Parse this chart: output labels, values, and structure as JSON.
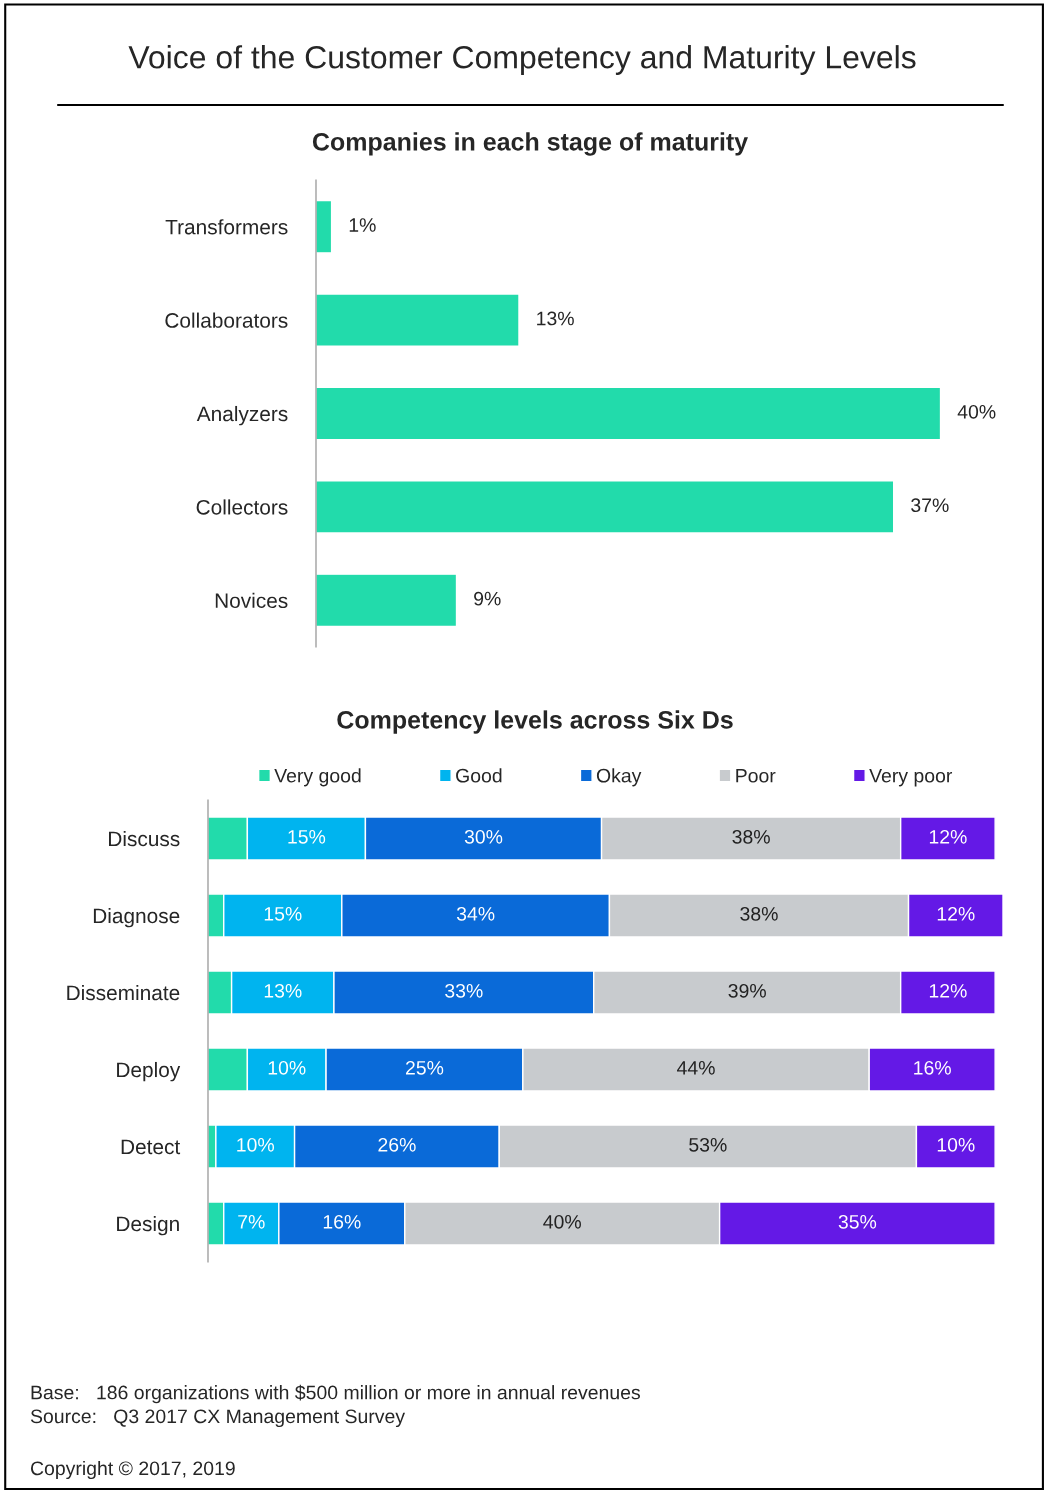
{
  "chart_data": [
    {
      "type": "bar",
      "orientation": "horizontal",
      "title": "Voice of the Customer Competency and Maturity Levels",
      "subtitle": "Companies in each stage of maturity",
      "categories": [
        "Transformers",
        "Collaborators",
        "Analyzers",
        "Collectors",
        "Novices"
      ],
      "values": [
        1,
        13,
        40,
        37,
        9
      ],
      "value_labels": [
        "1%",
        "13%",
        "40%",
        "37%",
        "9%"
      ],
      "color": "#22dbab",
      "tick_labels": "y",
      "grid": false
    },
    {
      "type": "bar",
      "orientation": "horizontal",
      "stacked": true,
      "title": "Competency levels across Six Ds",
      "legend": "top",
      "tick_labels": "y",
      "grid": false,
      "categories": [
        "Discuss",
        "Diagnose",
        "Disseminate",
        "Deploy",
        "Detect",
        "Design"
      ],
      "series": [
        {
          "name": "Very good",
          "color": "#22dbab",
          "values": [
            5,
            2,
            3,
            5,
            1,
            2
          ],
          "value_labels": [
            null,
            null,
            null,
            null,
            null,
            null
          ]
        },
        {
          "name": "Good",
          "color": "#00b4ef",
          "values": [
            15,
            15,
            13,
            10,
            10,
            7
          ],
          "value_labels": [
            "15%",
            "15%",
            "13%",
            "10%",
            "10%",
            "7%"
          ]
        },
        {
          "name": "Okay",
          "color": "#0a6ad8",
          "values": [
            30,
            34,
            33,
            25,
            26,
            16
          ],
          "value_labels": [
            "30%",
            "34%",
            "33%",
            "25%",
            "26%",
            "16%"
          ]
        },
        {
          "name": "Poor",
          "color": "#c8cbce",
          "values": [
            38,
            38,
            39,
            44,
            53,
            40
          ],
          "value_labels": [
            "38%",
            "38%",
            "39%",
            "44%",
            "53%",
            "40%"
          ]
        },
        {
          "name": "Very poor",
          "color": "#6419e6",
          "values": [
            12,
            12,
            12,
            16,
            10,
            35
          ],
          "value_labels": [
            "12%",
            "12%",
            "12%",
            "16%",
            "10%",
            "35%"
          ]
        }
      ],
      "annotations": [
        "Base:   186 organizations with $500 million or more in annual revenues",
        "Source:   Q3 2017 CX Management Survey",
        "Copyright © 2017, 2019"
      ]
    }
  ]
}
